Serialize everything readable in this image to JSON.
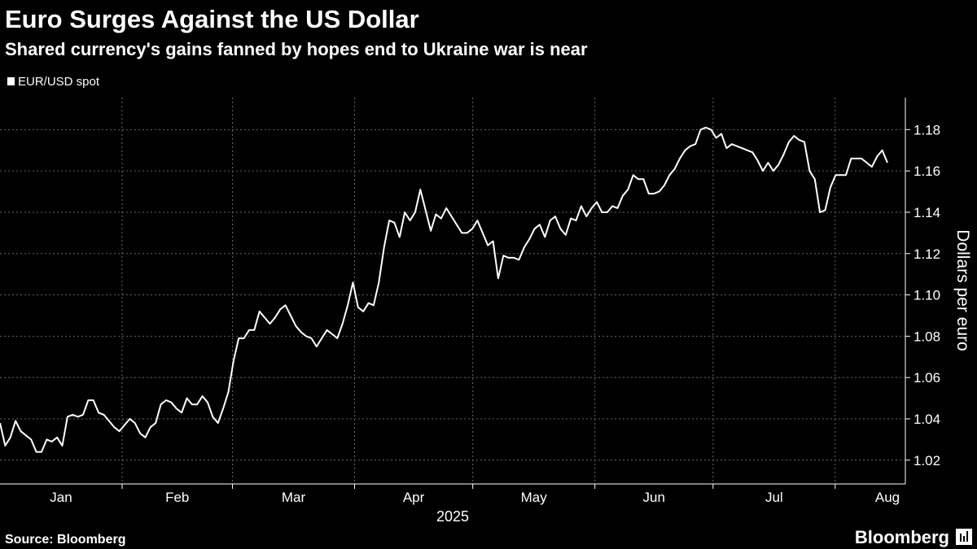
{
  "chart_data": {
    "type": "line",
    "title": "Euro Surges Against the US Dollar",
    "subtitle": "Shared currency's gains fanned by hopes end to Ukraine war is near",
    "series": [
      {
        "name": "EUR/USD spot",
        "color": "#ffffff",
        "values": [
          1.038,
          1.027,
          1.031,
          1.039,
          1.034,
          1.032,
          1.03,
          1.024,
          1.024,
          1.03,
          1.029,
          1.031,
          1.027,
          1.041,
          1.042,
          1.041,
          1.042,
          1.049,
          1.049,
          1.043,
          1.042,
          1.039,
          1.036,
          1.034,
          1.037,
          1.04,
          1.038,
          1.033,
          1.031,
          1.036,
          1.038,
          1.047,
          1.049,
          1.048,
          1.045,
          1.043,
          1.05,
          1.047,
          1.047,
          1.051,
          1.048,
          1.041,
          1.038,
          1.045,
          1.053,
          1.068,
          1.079,
          1.079,
          1.083,
          1.083,
          1.092,
          1.089,
          1.086,
          1.089,
          1.093,
          1.095,
          1.09,
          1.085,
          1.082,
          1.08,
          1.079,
          1.075,
          1.079,
          1.083,
          1.081,
          1.079,
          1.086,
          1.095,
          1.106,
          1.094,
          1.092,
          1.096,
          1.095,
          1.106,
          1.123,
          1.136,
          1.135,
          1.128,
          1.14,
          1.136,
          1.14,
          1.151,
          1.141,
          1.131,
          1.139,
          1.137,
          1.142,
          1.138,
          1.134,
          1.13,
          1.13,
          1.132,
          1.136,
          1.13,
          1.124,
          1.126,
          1.108,
          1.119,
          1.118,
          1.118,
          1.117,
          1.123,
          1.127,
          1.132,
          1.134,
          1.128,
          1.136,
          1.138,
          1.132,
          1.129,
          1.137,
          1.136,
          1.143,
          1.138,
          1.142,
          1.145,
          1.14,
          1.14,
          1.143,
          1.142,
          1.148,
          1.151,
          1.158,
          1.156,
          1.156,
          1.149,
          1.149,
          1.15,
          1.153,
          1.158,
          1.161,
          1.166,
          1.17,
          1.172,
          1.173,
          1.18,
          1.181,
          1.18,
          1.176,
          1.178,
          1.171,
          1.173,
          1.172,
          1.171,
          1.17,
          1.169,
          1.165,
          1.16,
          1.164,
          1.16,
          1.163,
          1.168,
          1.174,
          1.177,
          1.175,
          1.174,
          1.16,
          1.156,
          1.14,
          1.141,
          1.152,
          1.158,
          1.158,
          1.158,
          1.166,
          1.166,
          1.166,
          1.164,
          1.162,
          1.167,
          1.17,
          1.164
        ]
      }
    ],
    "months": [
      "Jan",
      "Feb",
      "Mar",
      "Apr",
      "May",
      "Jun",
      "Jul",
      "Aug"
    ],
    "xlabel": "2025",
    "ylabel": "Dollars per euro",
    "ylim": [
      1.0085,
      1.1955
    ],
    "yticks": [
      1.02,
      1.04,
      1.06,
      1.08,
      {
        "value": 1.1,
        "label": "1.10"
      },
      1.12,
      1.14,
      1.16,
      1.18
    ],
    "grid": true,
    "source": "Source: Bloomberg",
    "brand": "Bloomberg"
  }
}
